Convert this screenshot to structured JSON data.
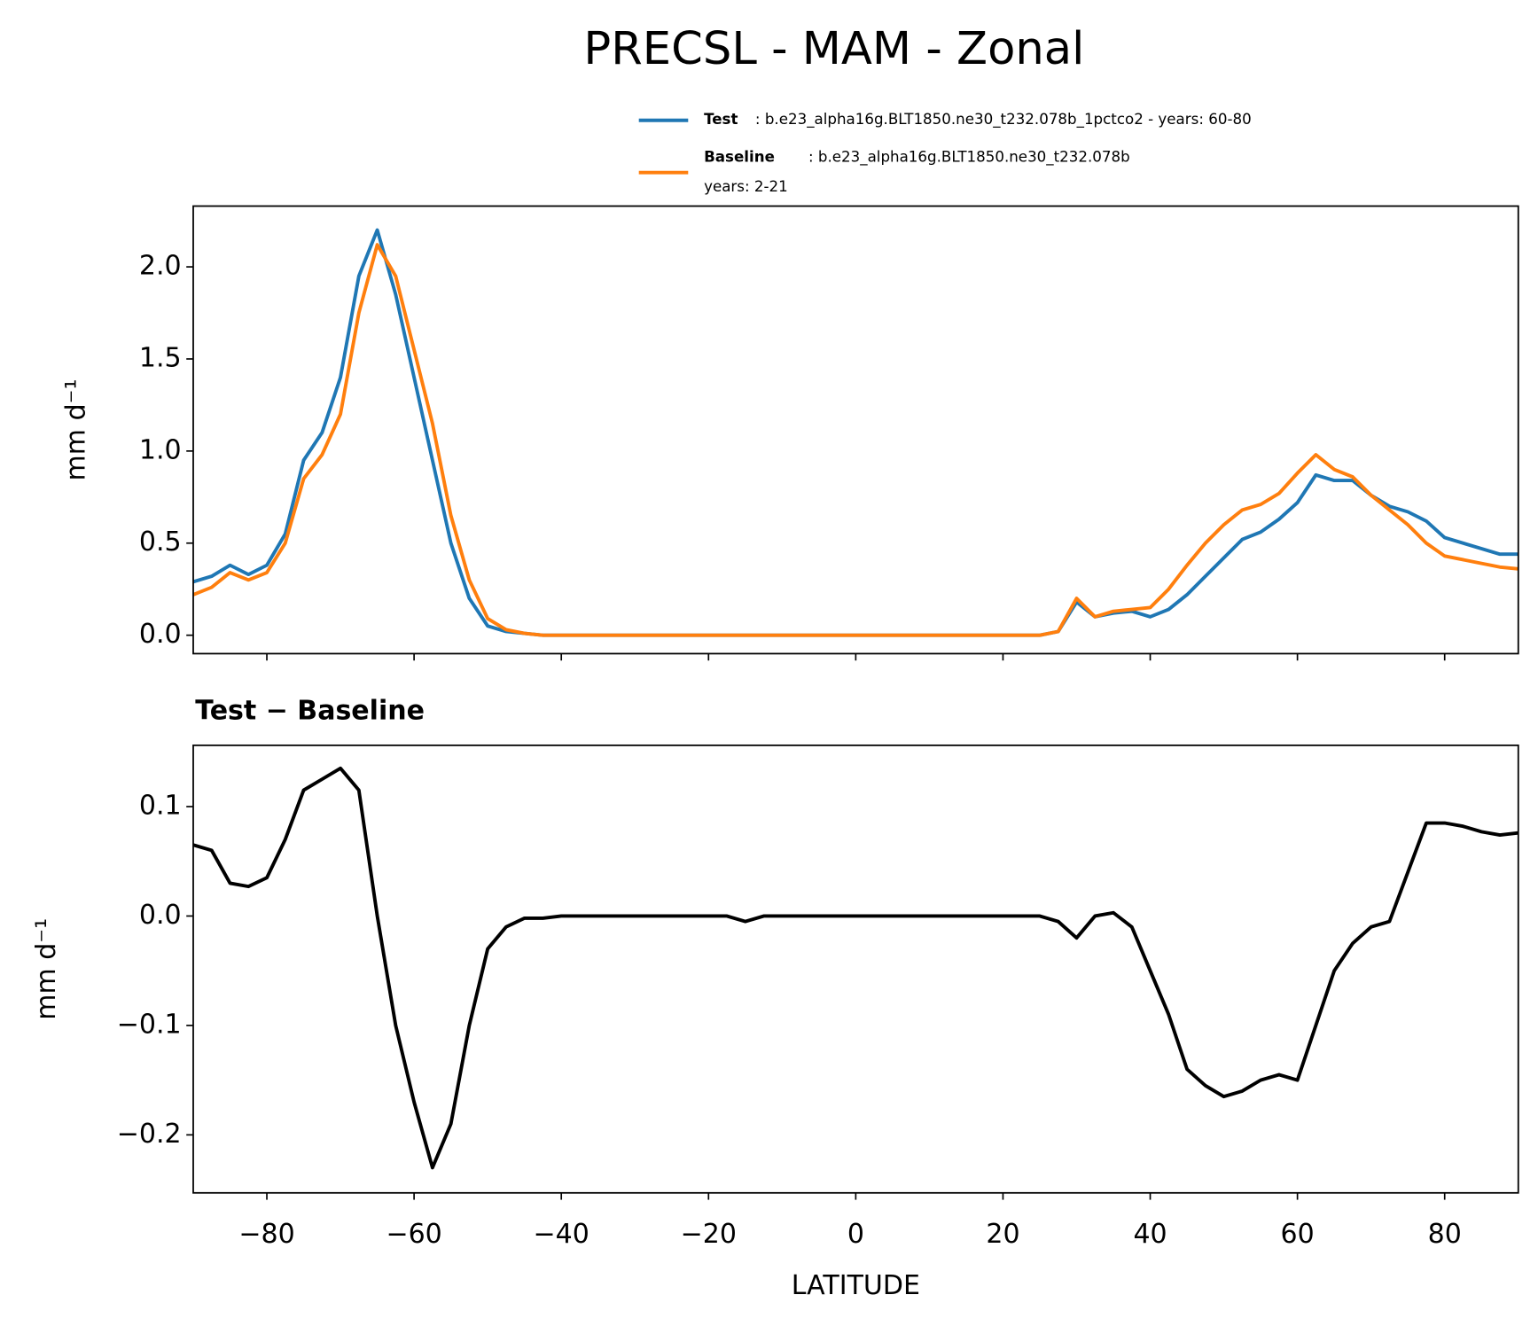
{
  "chart_data": [
    {
      "type": "line",
      "title": "PRECSL - MAM - Zonal",
      "ylabel": "mm d⁻¹",
      "x": [
        -90,
        -87.5,
        -85,
        -82.5,
        -80,
        -77.5,
        -75,
        -72.5,
        -70,
        -67.5,
        -65,
        -62.5,
        -60,
        -57.5,
        -55,
        -52.5,
        -50,
        -47.5,
        -45,
        -42.5,
        -40,
        -37.5,
        -35,
        -32.5,
        -30,
        -27.5,
        -25,
        -22.5,
        -20,
        -17.5,
        -15,
        -12.5,
        -10,
        -7.5,
        -5,
        -2.5,
        0,
        2.5,
        5,
        7.5,
        10,
        12.5,
        15,
        17.5,
        20,
        22.5,
        25,
        27.5,
        30,
        32.5,
        35,
        37.5,
        40,
        42.5,
        45,
        47.5,
        50,
        52.5,
        55,
        57.5,
        60,
        62.5,
        65,
        67.5,
        70,
        72.5,
        75,
        77.5,
        80,
        82.5,
        85,
        87.5,
        90
      ],
      "series": [
        {
          "name": "Test",
          "description": ": b.e23_alpha16g.BLT1850.ne30_t232.078b_1pctco2 - years: 60-80",
          "color": "#1f77b4",
          "values": [
            0.29,
            0.32,
            0.38,
            0.33,
            0.38,
            0.55,
            0.95,
            1.1,
            1.4,
            1.95,
            2.2,
            1.85,
            1.4,
            0.95,
            0.5,
            0.2,
            0.05,
            0.02,
            0.01,
            0,
            0,
            0,
            0,
            0,
            0,
            0,
            0,
            0,
            0,
            0,
            0,
            0,
            0,
            0,
            0,
            0,
            0,
            0,
            0,
            0,
            0,
            0,
            0,
            0,
            0,
            0,
            0,
            0.02,
            0.18,
            0.1,
            0.12,
            0.13,
            0.1,
            0.14,
            0.22,
            0.32,
            0.42,
            0.52,
            0.56,
            0.63,
            0.72,
            0.87,
            0.84,
            0.84,
            0.76,
            0.7,
            0.67,
            0.62,
            0.53,
            0.5,
            0.47,
            0.44,
            0.44
          ]
        },
        {
          "name": "Baseline",
          "description": [
            ": b.e23_alpha16g.BLT1850.ne30_t232.078b",
            "years: 2-21"
          ],
          "color": "#ff7f0e",
          "values": [
            0.22,
            0.26,
            0.34,
            0.3,
            0.34,
            0.5,
            0.85,
            0.98,
            1.2,
            1.75,
            2.12,
            1.95,
            1.55,
            1.15,
            0.65,
            0.3,
            0.09,
            0.03,
            0.01,
            0,
            0,
            0,
            0,
            0,
            0,
            0,
            0,
            0,
            0,
            0,
            0,
            0,
            0,
            0,
            0,
            0,
            0,
            0,
            0,
            0,
            0,
            0,
            0,
            0,
            0,
            0,
            0,
            0.02,
            0.2,
            0.1,
            0.13,
            0.14,
            0.15,
            0.25,
            0.38,
            0.5,
            0.6,
            0.68,
            0.71,
            0.77,
            0.88,
            0.98,
            0.9,
            0.86,
            0.76,
            0.68,
            0.6,
            0.5,
            0.43,
            0.41,
            0.39,
            0.37,
            0.36
          ]
        }
      ],
      "xlim": [
        -90,
        90
      ],
      "xticks": [
        -80,
        -60,
        -40,
        -20,
        0,
        20,
        40,
        60,
        80
      ],
      "ylim": [
        -0.1,
        2.33
      ],
      "yticks": [
        {
          "value": 0,
          "label": "0.0"
        },
        {
          "value": 0.5,
          "label": "0.5"
        },
        {
          "value": 1,
          "label": "1.0"
        },
        {
          "value": 1.5,
          "label": "1.5"
        },
        {
          "value": 2,
          "label": "2.0"
        }
      ]
    },
    {
      "type": "line",
      "title": "Test − Baseline",
      "ylabel": "mm d⁻¹",
      "xlabel": "LATITUDE",
      "color": "#000000",
      "x": [
        -90,
        -87.5,
        -85,
        -82.5,
        -80,
        -77.5,
        -75,
        -72.5,
        -70,
        -67.5,
        -65,
        -62.5,
        -60,
        -57.5,
        -55,
        -52.5,
        -50,
        -47.5,
        -45,
        -42.5,
        -40,
        -37.5,
        -35,
        -32.5,
        -30,
        -27.5,
        -25,
        -22.5,
        -20,
        -17.5,
        -15,
        -12.5,
        -10,
        -7.5,
        -5,
        -2.5,
        0,
        2.5,
        5,
        7.5,
        10,
        12.5,
        15,
        17.5,
        20,
        22.5,
        25,
        27.5,
        30,
        32.5,
        35,
        37.5,
        40,
        42.5,
        45,
        47.5,
        50,
        52.5,
        55,
        57.5,
        60,
        62.5,
        65,
        67.5,
        70,
        72.5,
        75,
        77.5,
        80,
        82.5,
        85,
        87.5,
        90
      ],
      "values": [
        0.065,
        0.06,
        0.03,
        0.027,
        0.035,
        0.07,
        0.115,
        0.125,
        0.135,
        0.115,
        0,
        -0.1,
        -0.17,
        -0.23,
        -0.19,
        -0.1,
        -0.03,
        -0.01,
        -0.002,
        -0.002,
        0,
        0,
        0,
        0,
        0,
        0,
        0,
        0,
        0,
        0,
        -0.005,
        0,
        0,
        0,
        0,
        0,
        0,
        0,
        0,
        0,
        0,
        0,
        0,
        0,
        0,
        0,
        0,
        -0.005,
        -0.02,
        0,
        0.003,
        -0.01,
        -0.05,
        -0.09,
        -0.14,
        -0.155,
        -0.165,
        -0.16,
        -0.15,
        -0.145,
        -0.15,
        -0.1,
        -0.05,
        -0.025,
        -0.01,
        -0.005,
        0.04,
        0.085,
        0.085,
        0.082,
        0.077,
        0.074,
        0.076
      ],
      "xlim": [
        -90,
        90
      ],
      "xticks": [
        {
          "value": -80,
          "label": "−80"
        },
        {
          "value": -60,
          "label": "−60"
        },
        {
          "value": -40,
          "label": "−40"
        },
        {
          "value": -20,
          "label": "−20"
        },
        0,
        20,
        40,
        60,
        80
      ],
      "ylim": [
        -0.253,
        0.156
      ],
      "yticks": [
        {
          "value": -0.2,
          "label": "−0.2"
        },
        {
          "value": -0.1,
          "label": "−0.1"
        },
        {
          "value": 0,
          "label": "0.0"
        },
        {
          "value": 0.1,
          "label": "0.1"
        }
      ]
    }
  ]
}
